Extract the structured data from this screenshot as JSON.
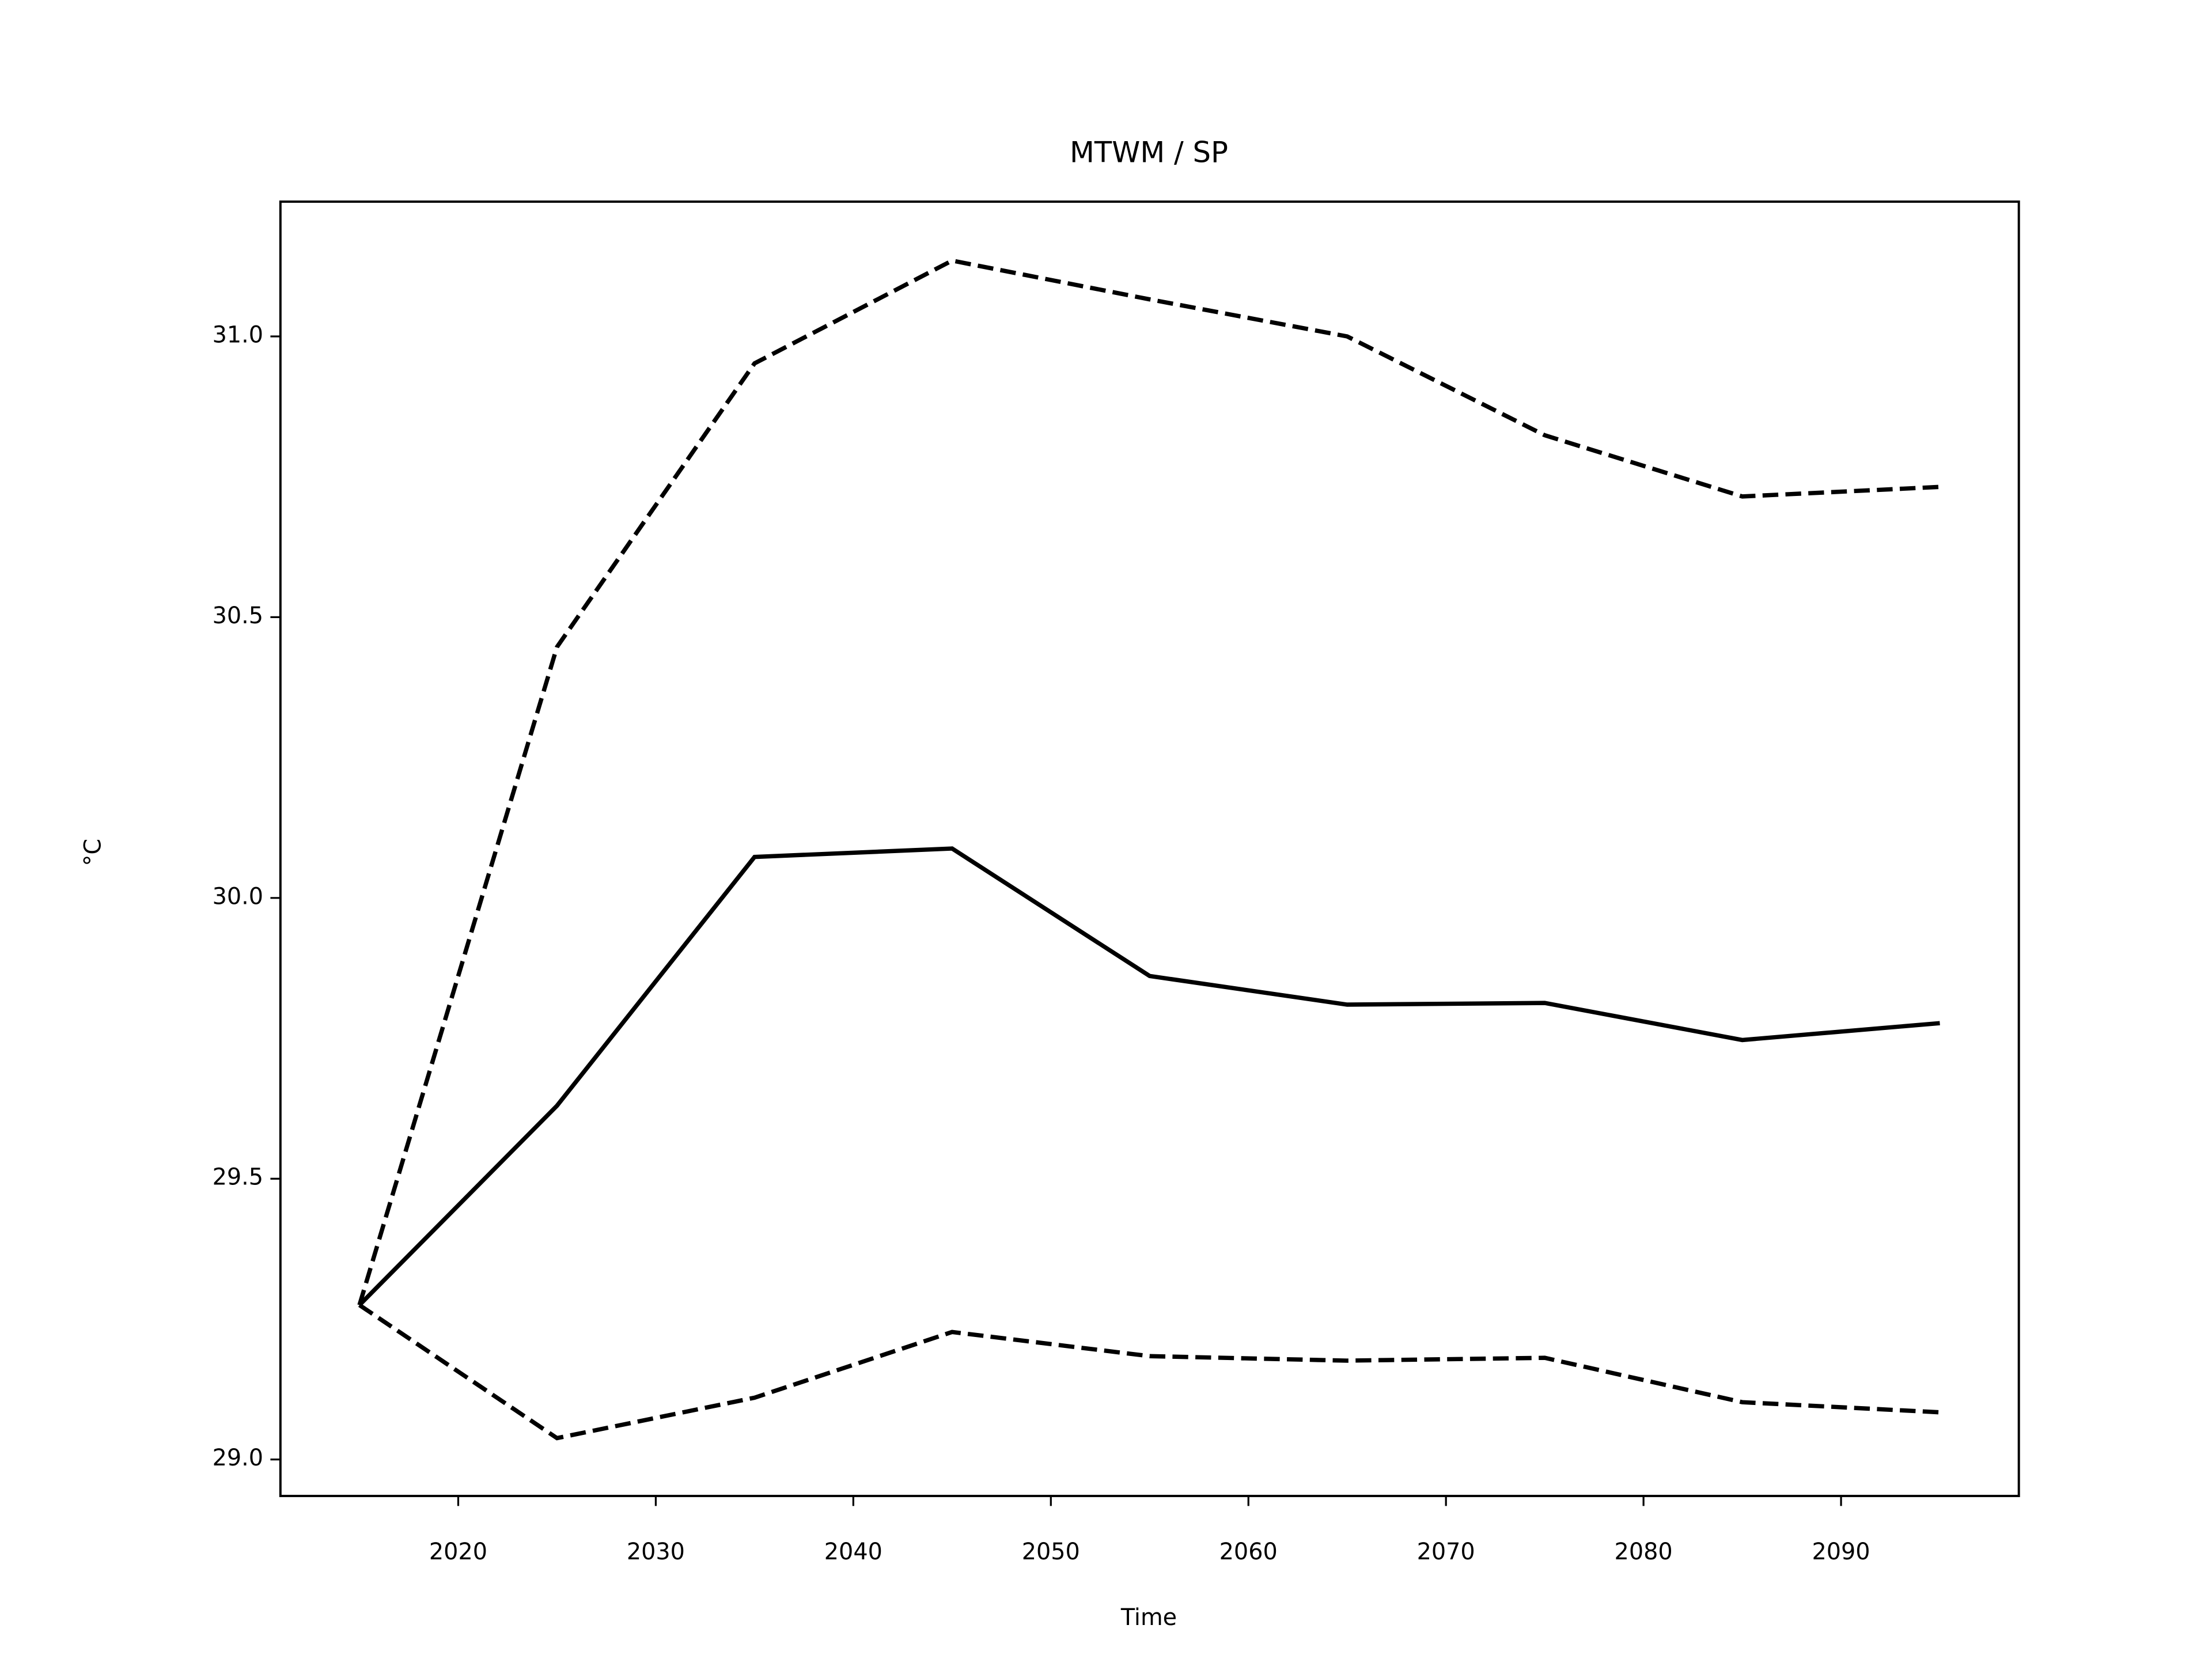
{
  "chart_data": {
    "type": "line",
    "title": "MTWM / SP",
    "x_label": "Time",
    "y_label": "°C",
    "x": [
      2015,
      2025,
      2035,
      2045,
      2055,
      2065,
      2075,
      2085,
      2095
    ],
    "series": [
      {
        "color": "#000000",
        "style": "solid",
        "values": [
          29.275,
          29.63,
          30.073,
          30.088,
          29.861,
          29.81,
          29.813,
          29.747,
          29.777
        ]
      },
      {
        "color": "#000000",
        "style": "dashed",
        "values": [
          29.275,
          30.447,
          30.952,
          31.135,
          31.066,
          31.0,
          30.824,
          30.715,
          30.732
        ]
      },
      {
        "color": "#000000",
        "style": "dashed",
        "values": [
          29.275,
          29.038,
          29.11,
          29.227,
          29.184,
          29.176,
          29.181,
          29.102,
          29.084
        ]
      }
    ],
    "xlim": [
      2011,
      2099
    ],
    "xticks": [
      2020,
      2030,
      2040,
      2050,
      2060,
      2070,
      2080,
      2090
    ],
    "ylim": [
      28.935,
      31.24
    ],
    "yticks": [
      {
        "value": 29,
        "label": "29.0"
      },
      29.5,
      {
        "value": 30,
        "label": "30.0"
      },
      30.5,
      {
        "value": 31,
        "label": "31.0"
      }
    ],
    "grid": false
  }
}
